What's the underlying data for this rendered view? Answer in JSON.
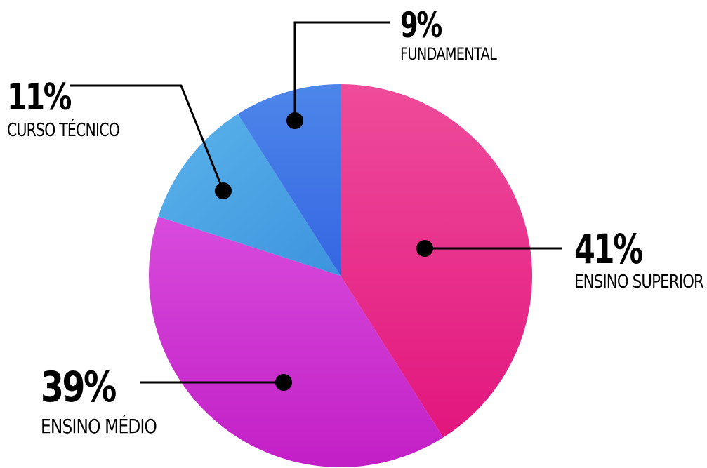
{
  "chart_data": {
    "type": "pie",
    "slices": [
      {
        "label": "ENSINO SUPERIOR",
        "value": 41,
        "value_label": "41%",
        "color": "#ec2a8e"
      },
      {
        "label": "ENSINO MÉDIO",
        "value": 39,
        "value_label": "39%",
        "color": "#d02fd0"
      },
      {
        "label": "CURSO TÉCNICO",
        "value": 11,
        "value_label": "11%",
        "color": "#4aa3e3"
      },
      {
        "label": "FUNDAMENTAL",
        "value": 9,
        "value_label": "9%",
        "color": "#3f78e6"
      }
    ]
  }
}
